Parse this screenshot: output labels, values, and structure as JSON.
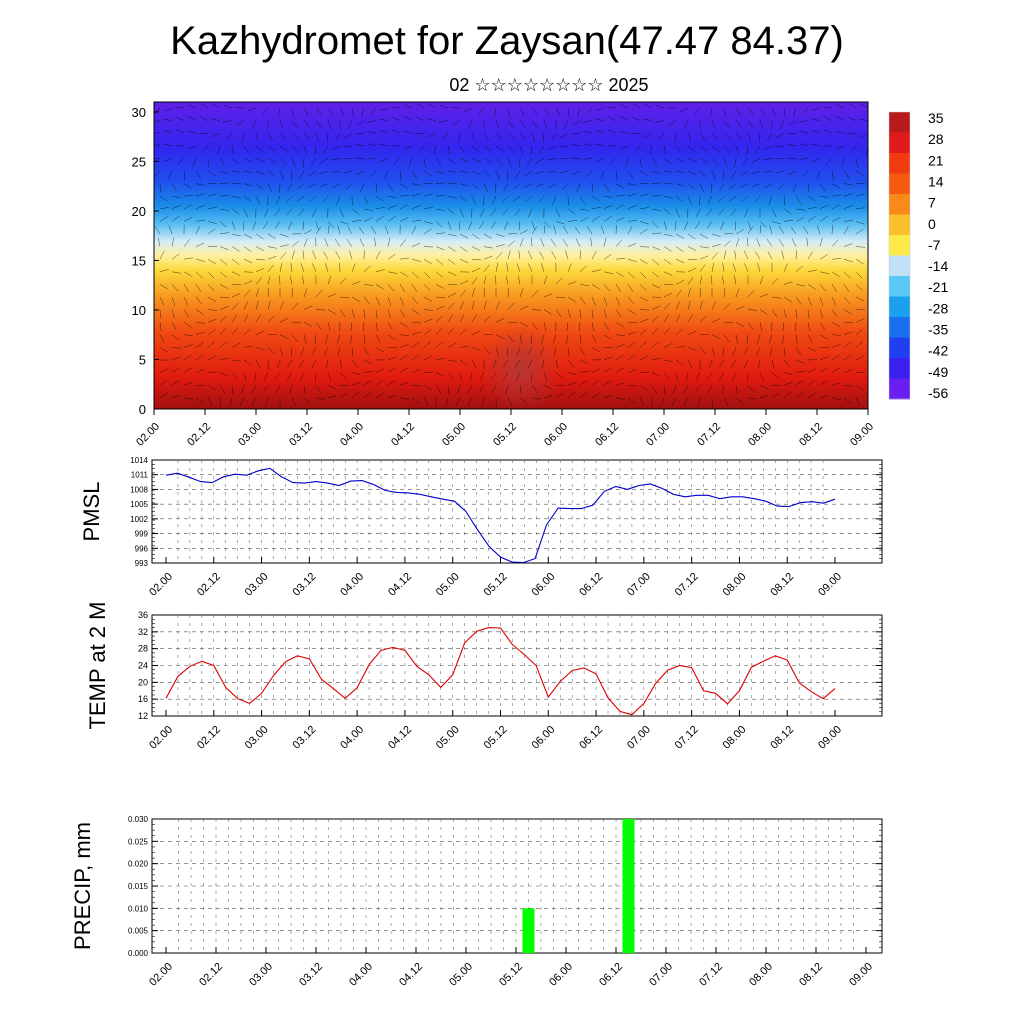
{
  "header": {
    "title": "Kazhydromet for Zaysan(47.47 84.37)",
    "subtitle": "02 ☆☆☆☆☆☆☆☆ 2025"
  },
  "time_labels": [
    "02.00",
    "02.12",
    "03.00",
    "03.12",
    "04.00",
    "04.12",
    "05.00",
    "05.12",
    "06.00",
    "06.12",
    "07.00",
    "07.12",
    "08.00",
    "08.12",
    "09.00"
  ],
  "chart_data": [
    {
      "type": "heatmap",
      "name": "cross-section",
      "x_labels": [
        "02.00",
        "02.12",
        "03.00",
        "03.12",
        "04.00",
        "04.12",
        "05.00",
        "05.12",
        "06.00",
        "06.12",
        "07.00",
        "07.12",
        "08.00",
        "08.12",
        "09.00"
      ],
      "y_ticks": [
        0,
        5,
        10,
        15,
        20,
        25,
        30
      ],
      "ylim": [
        0,
        31
      ],
      "colorbar_labels": [
        "35",
        "28",
        "21",
        "14",
        "7",
        "0",
        "-7",
        "-14",
        "-21",
        "-28",
        "-35",
        "-42",
        "-49",
        "-56"
      ],
      "colorbar_colors": [
        "#b71b1b",
        "#e01a1a",
        "#f03a10",
        "#f55a10",
        "#f88a1a",
        "#fcc02a",
        "#fde94a",
        "#bfe0f5",
        "#5ac8f5",
        "#1aa0ee",
        "#1a6ef0",
        "#2040f0",
        "#3a20f0",
        "#6a1ff0"
      ],
      "grid": false
    },
    {
      "type": "line",
      "name": "pmsl",
      "ylabel": "PMSL",
      "y_ticks": [
        993,
        996,
        999,
        1002,
        1005,
        1008,
        1011,
        1014
      ],
      "ylim": [
        993,
        1014
      ],
      "color": "#0000cc",
      "grid": true,
      "values": [
        1010.9,
        1011.3,
        1010.5,
        1009.6,
        1009.4,
        1010.6,
        1011.1,
        1010.9,
        1011.8,
        1012.3,
        1010.6,
        1009.4,
        1009.3,
        1009.6,
        1009.3,
        1008.8,
        1009.7,
        1009.8,
        1009.0,
        1007.8,
        1007.4,
        1007.3,
        1007.0,
        1006.5,
        1006.0,
        1005.6,
        1003.5,
        999.8,
        996.4,
        994.2,
        993.2,
        993.1,
        993.9,
        1000.8,
        1004.2,
        1004.1,
        1004.1,
        1004.8,
        1007.6,
        1008.6,
        1008.0,
        1008.8,
        1009.1,
        1008.2,
        1007.0,
        1006.5,
        1006.8,
        1006.8,
        1006.1,
        1006.5,
        1006.5,
        1006.1,
        1005.6,
        1004.6,
        1004.5,
        1005.3,
        1005.5,
        1005.2,
        1006.0
      ]
    },
    {
      "type": "line",
      "name": "temp-2m",
      "ylabel": "TEMP at 2 M",
      "y_ticks": [
        12,
        16,
        20,
        24,
        28,
        32,
        36
      ],
      "ylim": [
        12,
        36
      ],
      "color": "#dd0000",
      "grid": true,
      "values": [
        16.2,
        21.4,
        23.8,
        25.0,
        24.0,
        18.8,
        16.1,
        15.0,
        17.4,
        21.6,
        24.9,
        26.3,
        25.6,
        20.8,
        18.5,
        16.2,
        18.7,
        24.2,
        27.6,
        28.3,
        27.6,
        23.8,
        21.8,
        18.8,
        21.8,
        29.4,
        32.1,
        33.0,
        32.9,
        29.0,
        26.6,
        23.9,
        16.5,
        20.2,
        22.8,
        23.4,
        22.0,
        16.3,
        13.1,
        12.3,
        15.0,
        19.8,
        22.9,
        24.0,
        23.5,
        18.0,
        17.4,
        14.9,
        18.0,
        23.6,
        25.0,
        26.3,
        25.3,
        19.9,
        17.8,
        16.1,
        18.5
      ]
    },
    {
      "type": "bar",
      "name": "precip",
      "ylabel": "PRECIP, mm",
      "y_ticks": [
        "0.000",
        "0.005",
        "0.010",
        "0.015",
        "0.020",
        "0.025",
        "0.030"
      ],
      "ylim": [
        0,
        0.03
      ],
      "color": "#00ff00",
      "grid": true,
      "bars": [
        {
          "x": "05.15",
          "value": 0.01
        },
        {
          "x": "06.15",
          "value": 0.03
        }
      ]
    }
  ]
}
